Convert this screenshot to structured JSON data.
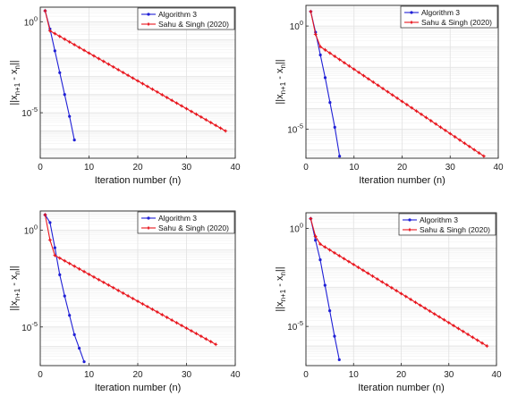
{
  "chart_data": [
    {
      "type": "line",
      "xlabel": "Iteration number (n)",
      "ylabel": "||x",
      "ylabel_sub1": "n+1",
      "ylabel_mid": " - x",
      "ylabel_sub2": "n",
      "ylabel_end": "||",
      "xlim": [
        0,
        40
      ],
      "ylim_exp": [
        -7.5,
        0.8
      ],
      "y_scale": "log",
      "xticks": [
        0,
        10,
        20,
        30,
        40
      ],
      "yticks": [
        {
          "exp": 0,
          "base": "10",
          "sup": "0"
        },
        {
          "exp": -5,
          "base": "10",
          "sup": "-5"
        }
      ],
      "grid": true,
      "legend_position": "top-right",
      "series": [
        {
          "name": "Algorithm 3",
          "color": "#1f1fd6",
          "marker": "dot",
          "x": [
            1,
            2,
            3,
            4,
            5,
            6,
            7
          ],
          "log10_y": [
            0.6,
            -0.4,
            -1.6,
            -2.8,
            -4.0,
            -5.2,
            -6.5
          ]
        },
        {
          "name": "Sahu & Singh (2020)",
          "color": "#e8141c",
          "marker": "star",
          "x_start": 1,
          "x_end": 38,
          "log10_y_head": [
            0.6,
            -0.5
          ],
          "log10_y_end": -6.0
        }
      ]
    },
    {
      "type": "line",
      "xlabel": "Iteration number (n)",
      "ylabel": "||x",
      "ylabel_sub1": "n+1",
      "ylabel_mid": " - x",
      "ylabel_sub2": "n",
      "ylabel_end": "||",
      "xlim": [
        0,
        40
      ],
      "ylim_exp": [
        -6.4,
        1.0
      ],
      "y_scale": "log",
      "xticks": [
        0,
        10,
        20,
        30,
        40
      ],
      "yticks": [
        {
          "exp": 0,
          "base": "10",
          "sup": "0"
        },
        {
          "exp": -5,
          "base": "10",
          "sup": "-5"
        }
      ],
      "grid": true,
      "legend_position": "top-right",
      "series": [
        {
          "name": "Algorithm 3",
          "color": "#1f1fd6",
          "marker": "dot",
          "x": [
            1,
            2,
            3,
            4,
            5,
            6,
            7
          ],
          "log10_y": [
            0.7,
            -0.3,
            -1.4,
            -2.5,
            -3.7,
            -4.9,
            -6.3
          ]
        },
        {
          "name": "Sahu & Singh (2020)",
          "color": "#e8141c",
          "marker": "star",
          "x_start": 1,
          "x_end": 37,
          "log10_y_head": [
            0.7,
            -0.4,
            -1.0
          ],
          "log10_y_end": -6.3
        }
      ]
    },
    {
      "type": "line",
      "xlabel": "Iteration number (n)",
      "ylabel": "||x",
      "ylabel_sub1": "n+1",
      "ylabel_mid": " - x",
      "ylabel_sub2": "n",
      "ylabel_end": "||",
      "xlim": [
        0,
        40
      ],
      "ylim_exp": [
        -7.0,
        1.0
      ],
      "y_scale": "log",
      "xticks": [
        0,
        10,
        20,
        30,
        40
      ],
      "yticks": [
        {
          "exp": 0,
          "base": "10",
          "sup": "0"
        },
        {
          "exp": -5,
          "base": "10",
          "sup": "-5"
        }
      ],
      "grid": true,
      "legend_position": "top-right",
      "series": [
        {
          "name": "Algorithm 3",
          "color": "#1f1fd6",
          "marker": "dot",
          "x": [
            1,
            2,
            3,
            4,
            5,
            6,
            7,
            8,
            9
          ],
          "log10_y": [
            0.8,
            0.4,
            -0.9,
            -2.3,
            -3.4,
            -4.4,
            -5.4,
            -6.1,
            -6.8
          ]
        },
        {
          "name": "Sahu & Singh (2020)",
          "color": "#e8141c",
          "marker": "star",
          "x_start": 1,
          "x_end": 36,
          "log10_y_head": [
            0.8,
            -0.5,
            -1.3
          ],
          "log10_y_end": -5.9
        }
      ]
    },
    {
      "type": "line",
      "xlabel": "Iteration number (n)",
      "ylabel": "||x",
      "ylabel_sub1": "n+1",
      "ylabel_mid": " - x",
      "ylabel_sub2": "n",
      "ylabel_end": "||",
      "xlim": [
        0,
        40
      ],
      "ylim_exp": [
        -7.0,
        0.8
      ],
      "y_scale": "log",
      "xticks": [
        0,
        10,
        20,
        30,
        40
      ],
      "yticks": [
        {
          "exp": 0,
          "base": "10",
          "sup": "0"
        },
        {
          "exp": -5,
          "base": "10",
          "sup": "-5"
        }
      ],
      "grid": true,
      "legend_position": "top-right",
      "series": [
        {
          "name": "Algorithm 3",
          "color": "#1f1fd6",
          "marker": "dot",
          "x": [
            1,
            2,
            3,
            4,
            5,
            6,
            7
          ],
          "log10_y": [
            0.5,
            -0.6,
            -1.6,
            -2.9,
            -4.2,
            -5.5,
            -6.7
          ]
        },
        {
          "name": "Sahu & Singh (2020)",
          "color": "#e8141c",
          "marker": "star",
          "x_start": 1,
          "x_end": 38,
          "log10_y_head": [
            0.5,
            -0.4,
            -0.8
          ],
          "log10_y_end": -6.0
        }
      ]
    }
  ]
}
